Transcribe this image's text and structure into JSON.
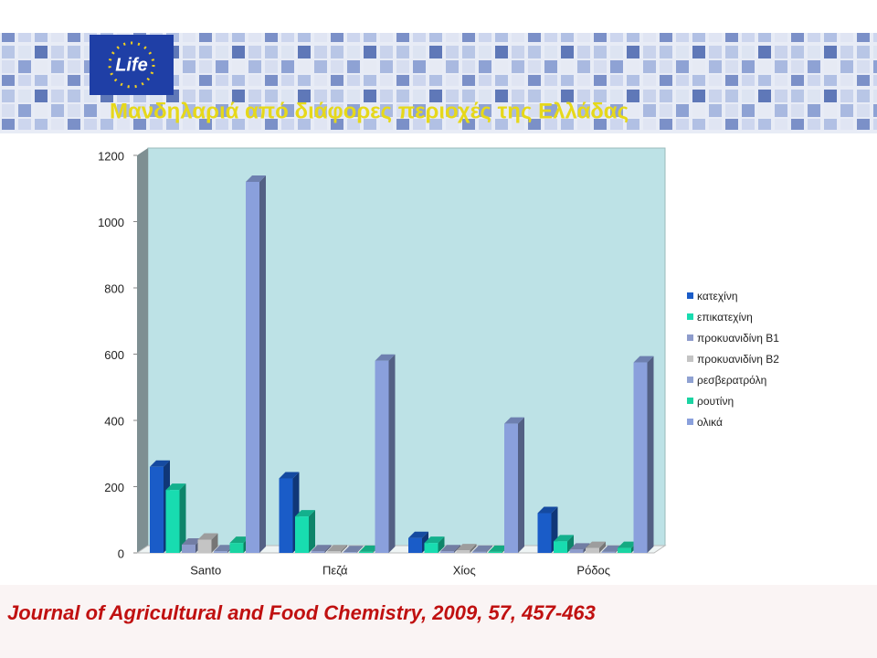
{
  "chart_data": {
    "type": "bar3d",
    "title": "Μανδηλαριά από διάφορες περιοχές της Ελλάδας",
    "categories": [
      "Santo",
      "Πεζά",
      "Χίος",
      "Ρόδος"
    ],
    "series": [
      {
        "name": "κατεχίνη",
        "color": "#1a5cc8",
        "values": [
          260,
          225,
          45,
          120
        ]
      },
      {
        "name": "επικατεχίνη",
        "color": "#18dcb0",
        "values": [
          190,
          110,
          30,
          35
        ]
      },
      {
        "name": "προκυανιδίνη Β1",
        "color": "#8e9ccc",
        "values": [
          25,
          5,
          5,
          10
        ]
      },
      {
        "name": "προκυανιδίνη Β2",
        "color": "#c4c4c4",
        "values": [
          40,
          5,
          8,
          15
        ]
      },
      {
        "name": "ρεσβερατρόλη",
        "color": "#90a2d2",
        "values": [
          5,
          2,
          3,
          3
        ]
      },
      {
        "name": "ρουτίνη",
        "color": "#1ad4a2",
        "values": [
          30,
          3,
          3,
          15
        ]
      },
      {
        "name": "ολικά",
        "color": "#8aa0dc",
        "values": [
          1120,
          580,
          390,
          575
        ]
      }
    ],
    "ylim": [
      0,
      1200
    ],
    "yticks": [
      0,
      200,
      400,
      600,
      800,
      1000,
      1200
    ],
    "grid": false,
    "legend": "right"
  },
  "logo": "Life",
  "footer": "Journal of Agricultural and Food Chemistry, 2009, 57, 457-463"
}
